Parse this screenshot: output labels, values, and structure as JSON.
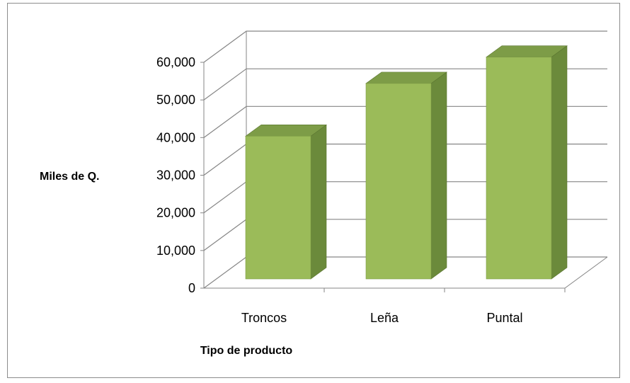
{
  "chart_data": {
    "type": "bar",
    "style": "3d-column",
    "title": "",
    "xlabel": "Tipo de producto",
    "ylabel": "Miles de Q.",
    "categories": [
      "Troncos",
      "Leña",
      "Puntal"
    ],
    "values": [
      38500,
      52500,
      59500
    ],
    "ylim": [
      0,
      60000
    ],
    "yticks": [
      "0",
      "10,000",
      "20,000",
      "30,000",
      "40,000",
      "50,000",
      "60,000"
    ],
    "ytick_values": [
      0,
      10000,
      20000,
      30000,
      40000,
      50000,
      60000
    ],
    "grid": true,
    "legend": "none",
    "colors": {
      "bar_front": "#9bbb59",
      "bar_side": "#6b8a3b",
      "bar_top": "#7d9c47",
      "grid": "#868686",
      "axis": "#868686"
    }
  }
}
